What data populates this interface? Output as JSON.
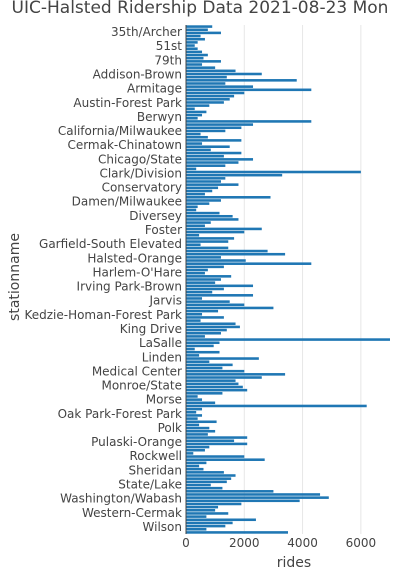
{
  "chart_data": {
    "type": "bar",
    "orientation": "horizontal",
    "title": "UIC-Halsted Ridership Data 2021-08-23 Mon",
    "xlabel": "rides",
    "ylabel": "stationname",
    "xlim": [
      0,
      7000
    ],
    "xticks": [
      0,
      2000,
      4000,
      6000
    ],
    "grid": true,
    "legend": "none",
    "bar_color": "#1f77b4",
    "axis_labels_shown": [
      "35th/Archer",
      "51st",
      "79th",
      "Addison-Brown",
      "Armitage",
      "Austin-Forest Park",
      "Berwyn",
      "California/Milwaukee",
      "Cermak-Chinatown",
      "Chicago/State",
      "Clark/Division",
      "Conservatory",
      "Damen/Milwaukee",
      "Diversey",
      "Foster",
      "Garfield-South Elevated",
      "Halsted-Orange",
      "Harlem-O'Hare",
      "Irving Park-Brown",
      "Jarvis",
      "Kedzie-Homan-Forest Park",
      "King Drive",
      "LaSalle",
      "Linden",
      "Medical Center",
      "Monroe/State",
      "Morse",
      "Oak Park-Forest Park",
      "Polk",
      "Pulaski-Orange",
      "Rockwell",
      "Sheridan",
      "State/Lake",
      "Washington/Wabash",
      "Western-Cermak",
      "Wilson"
    ],
    "values": [
      900,
      750,
      1200,
      500,
      650,
      400,
      300,
      400,
      550,
      750,
      600,
      1200,
      550,
      1000,
      1700,
      2600,
      1400,
      3800,
      1350,
      2300,
      4300,
      2000,
      1650,
      1500,
      1300,
      800,
      300,
      700,
      550,
      400,
      4300,
      2300,
      1900,
      1350,
      500,
      750,
      1900,
      550,
      1500,
      850,
      1900,
      1300,
      2300,
      1800,
      1350,
      350,
      6000,
      3300,
      1350,
      1200,
      1800,
      1100,
      900,
      650,
      2900,
      1200,
      800,
      400,
      350,
      1150,
      1600,
      1800,
      850,
      650,
      2600,
      2000,
      450,
      1650,
      1450,
      500,
      1450,
      2800,
      3400,
      1200,
      2050,
      4300,
      1300,
      750,
      650,
      1550,
      1200,
      1000,
      2300,
      1300,
      900,
      2300,
      550,
      1500,
      2000,
      3000,
      1100,
      550,
      1300,
      500,
      1700,
      1850,
      1400,
      1200,
      650,
      7000,
      1150,
      950,
      300,
      1150,
      450,
      2500,
      800,
      1600,
      1250,
      2000,
      3400,
      2600,
      1700,
      1800,
      1950,
      2100,
      1250,
      400,
      550,
      1000,
      6200,
      550,
      350,
      550,
      400,
      1050,
      450,
      800,
      1000,
      750,
      2100,
      1650,
      2100,
      800,
      650,
      250,
      2000,
      2700,
      700,
      450,
      600,
      1300,
      1700,
      1550,
      1400,
      850,
      1250,
      3000,
      4600,
      4900,
      3900,
      1900,
      1100,
      1000,
      1450,
      700,
      2400,
      1600,
      1350,
      700,
      3500
    ]
  }
}
